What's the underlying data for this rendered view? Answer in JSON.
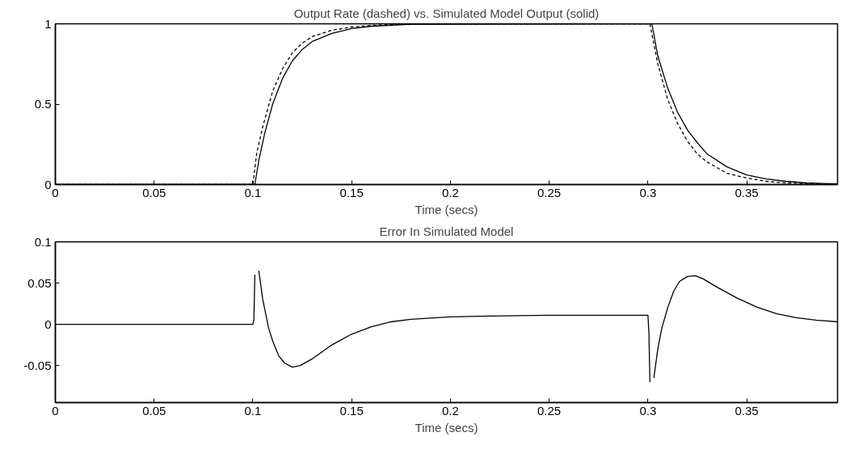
{
  "chart_data": [
    {
      "type": "line",
      "title": "Output Rate (dashed) vs. Simulated Model Output (solid)",
      "xlabel": "Time (secs)",
      "xlim": [
        0,
        0.396
      ],
      "ylim": [
        0,
        1
      ],
      "xticks": [
        0,
        0.05,
        0.1,
        0.15,
        0.2,
        0.25,
        0.3,
        0.35
      ],
      "yticks": [
        0,
        0.5,
        1
      ],
      "grid": false,
      "series": [
        {
          "color": "#000000",
          "line_style": "dashed",
          "x": [
            0,
            0.1,
            0.102,
            0.105,
            0.11,
            0.115,
            0.12,
            0.125,
            0.13,
            0.14,
            0.15,
            0.16,
            0.18,
            0.3,
            0.301,
            0.305,
            0.31,
            0.315,
            0.32,
            0.325,
            0.33,
            0.34,
            0.35,
            0.36,
            0.37,
            0.38,
            0.396
          ],
          "values": [
            0,
            0,
            0.2,
            0.36,
            0.58,
            0.72,
            0.82,
            0.88,
            0.92,
            0.96,
            0.98,
            0.99,
            1,
            1,
            1,
            0.75,
            0.53,
            0.38,
            0.27,
            0.19,
            0.14,
            0.07,
            0.04,
            0.02,
            0.01,
            0.005,
            0.002
          ]
        },
        {
          "color": "#000000",
          "line_style": "solid",
          "x": [
            0,
            0.101,
            0.103,
            0.106,
            0.11,
            0.115,
            0.12,
            0.125,
            0.13,
            0.14,
            0.15,
            0.16,
            0.18,
            0.3,
            0.302,
            0.305,
            0.31,
            0.315,
            0.32,
            0.325,
            0.33,
            0.34,
            0.35,
            0.36,
            0.37,
            0.38,
            0.396
          ],
          "values": [
            0,
            0,
            0.15,
            0.32,
            0.5,
            0.66,
            0.77,
            0.84,
            0.89,
            0.94,
            0.97,
            0.985,
            0.997,
            1,
            1,
            0.8,
            0.6,
            0.45,
            0.34,
            0.26,
            0.19,
            0.11,
            0.06,
            0.035,
            0.02,
            0.01,
            0.004
          ]
        }
      ]
    },
    {
      "type": "line",
      "title": "Error In Simulated Model",
      "xlabel": "Time (secs)",
      "xlim": [
        0,
        0.396
      ],
      "ylim": [
        -0.095,
        0.1
      ],
      "xticks": [
        0,
        0.05,
        0.1,
        0.15,
        0.2,
        0.25,
        0.3,
        0.35
      ],
      "yticks": [
        -0.05,
        0,
        0.05,
        0.1
      ],
      "grid": false,
      "series": [
        {
          "color": "#000000",
          "x": [
            0,
            0.1,
            0.1005,
            0.101,
            0.1015,
            0.102,
            0.103,
            0.105,
            0.108,
            0.11,
            0.113,
            0.116,
            0.12,
            0.124,
            0.13,
            0.14,
            0.15,
            0.16,
            0.17,
            0.18,
            0.2,
            0.22,
            0.25,
            0.3,
            0.3005,
            0.301,
            0.3015,
            0.302,
            0.303,
            0.305,
            0.307,
            0.31,
            0.313,
            0.316,
            0.32,
            0.324,
            0.328,
            0.335,
            0.345,
            0.355,
            0.365,
            0.375,
            0.385,
            0.396
          ],
          "values": [
            0,
            0,
            0.005,
            0.06,
            null,
            null,
            0.065,
            0.03,
            -0.005,
            -0.02,
            -0.038,
            -0.047,
            -0.052,
            -0.05,
            -0.042,
            -0.025,
            -0.012,
            -0.003,
            0.003,
            0.006,
            0.009,
            0.01,
            0.011,
            0.011,
            -0.01,
            -0.07,
            null,
            null,
            -0.065,
            -0.03,
            -0.005,
            0.02,
            0.04,
            0.052,
            0.058,
            0.059,
            0.055,
            0.045,
            0.032,
            0.021,
            0.013,
            0.008,
            0.005,
            0.003
          ]
        }
      ]
    }
  ]
}
